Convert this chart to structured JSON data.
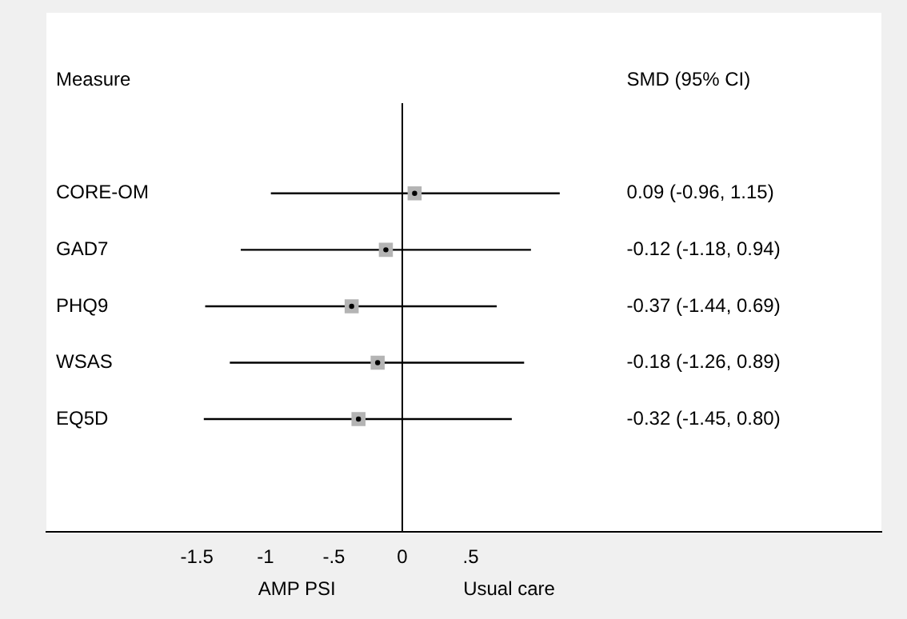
{
  "chart_data": {
    "type": "scatter",
    "orientation": "horizontal",
    "categories": [
      "CORE-OM",
      "GAD7",
      "PHQ9",
      "WSAS",
      "EQ5D"
    ],
    "values": [
      0.09,
      -0.12,
      -0.37,
      -0.18,
      -0.32
    ],
    "errors": [
      [
        -0.96,
        1.15
      ],
      [
        -1.18,
        0.94
      ],
      [
        -1.44,
        0.69
      ],
      [
        -1.26,
        0.89
      ],
      [
        -1.45,
        0.8
      ]
    ],
    "color": "#b4b4b4",
    "marker": "square",
    "xlim": [
      -2.6,
      3.5
    ],
    "xticks": [
      -1.5,
      -1,
      {
        "value": -0.5,
        "label": "-.5"
      },
      0,
      {
        "value": 0.5,
        "label": ".5"
      }
    ],
    "ref_lines": [
      {
        "axis": "x",
        "value": 0,
        "color": "#000000"
      }
    ],
    "annotations": [
      "Measure",
      "SMD (95% CI)",
      "AMP PSI",
      "Usual care",
      "0.09 (-0.96, 1.15)",
      "-0.12 (-1.18, 0.94)",
      "-0.37 (-1.44, 0.69)",
      "-0.18 (-1.26, 0.89)",
      "-0.32 (-1.45, 0.80)"
    ],
    "grid": false,
    "legend": false
  }
}
